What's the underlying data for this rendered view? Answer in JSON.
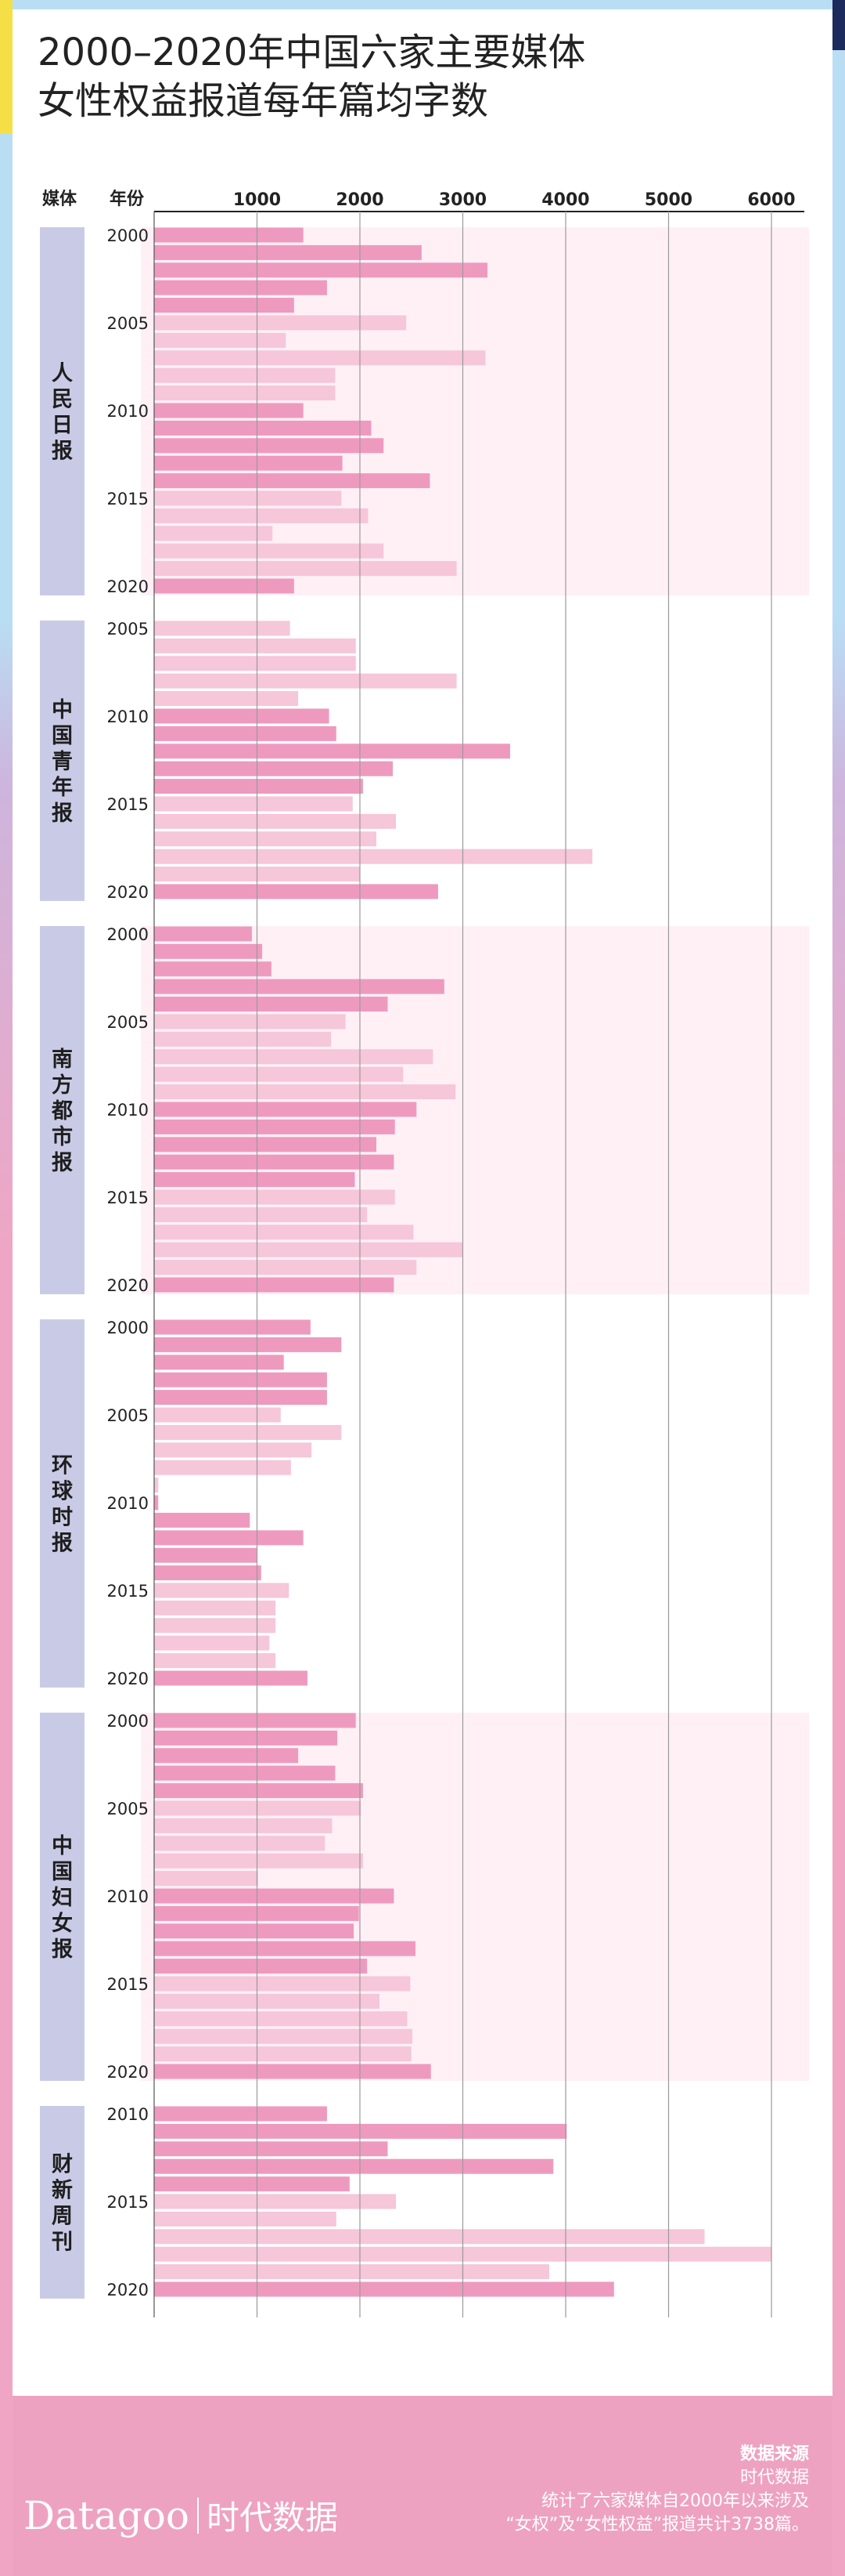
{
  "title_lines": [
    "2000–2020年中国六家主要媒体",
    "女性权益报道每年篇均字数"
  ],
  "headers": {
    "media": "媒体",
    "year": "年份"
  },
  "source": {
    "title": "数据来源",
    "name": "时代数据",
    "note_lines": [
      "统计了六家媒体自2000年以来涉及",
      "“女权”及“女性权益”报道共计3738篇。"
    ]
  },
  "logo": {
    "brand": "Datagoo",
    "cn": "时代数据"
  },
  "colors": {
    "dark": "#ee9abf",
    "light": "#f6c6d9",
    "band": "#fff0f6",
    "label_bg": "#c9cbe6"
  },
  "chart_data": {
    "type": "bar",
    "orientation": "horizontal",
    "x_ticks": [
      1000,
      2000,
      3000,
      4000,
      5000,
      6000
    ],
    "xlim": [
      0,
      6400
    ],
    "year_labels": [
      2000,
      2005,
      2010,
      2015,
      2020
    ],
    "groups": [
      {
        "name": "人民日报",
        "start_year": 2000,
        "band": true,
        "values": [
          1450,
          2600,
          3240,
          1680,
          1360,
          2450,
          1280,
          3220,
          1760,
          1760,
          1450,
          2110,
          2230,
          1830,
          2680,
          1820,
          2080,
          1150,
          2230,
          2940,
          1360
        ]
      },
      {
        "name": "中国青年报",
        "start_year": 2005,
        "band": false,
        "values": [
          1320,
          1960,
          1960,
          2940,
          1400,
          1700,
          1770,
          3460,
          2320,
          2030,
          1930,
          2350,
          2160,
          4260,
          2000,
          2760
        ]
      },
      {
        "name": "南方都市报",
        "start_year": 2000,
        "band": true,
        "values": [
          950,
          1050,
          1140,
          2820,
          2270,
          1860,
          1720,
          2710,
          2420,
          2930,
          2550,
          2340,
          2160,
          2330,
          1950,
          2340,
          2070,
          2520,
          3000,
          2550,
          2330
        ]
      },
      {
        "name": "环球时报",
        "start_year": 2000,
        "band": false,
        "values": [
          1520,
          1820,
          1260,
          1680,
          1680,
          1230,
          1820,
          1530,
          1330,
          40,
          40,
          930,
          1450,
          1000,
          1040,
          1310,
          1180,
          1180,
          1120,
          1180,
          1490
        ]
      },
      {
        "name": "中国妇女报",
        "start_year": 2000,
        "band": true,
        "values": [
          1960,
          1780,
          1400,
          1760,
          2030,
          2010,
          1730,
          1660,
          2030,
          1010,
          2330,
          1990,
          1940,
          2540,
          2070,
          2490,
          2190,
          2460,
          2510,
          2500,
          2690
        ]
      },
      {
        "name": "财新周刊",
        "start_year": 2010,
        "band": false,
        "values": [
          1680,
          4010,
          2270,
          3880,
          1900,
          2350,
          1770,
          5350,
          6000,
          3840,
          4470
        ]
      }
    ]
  }
}
